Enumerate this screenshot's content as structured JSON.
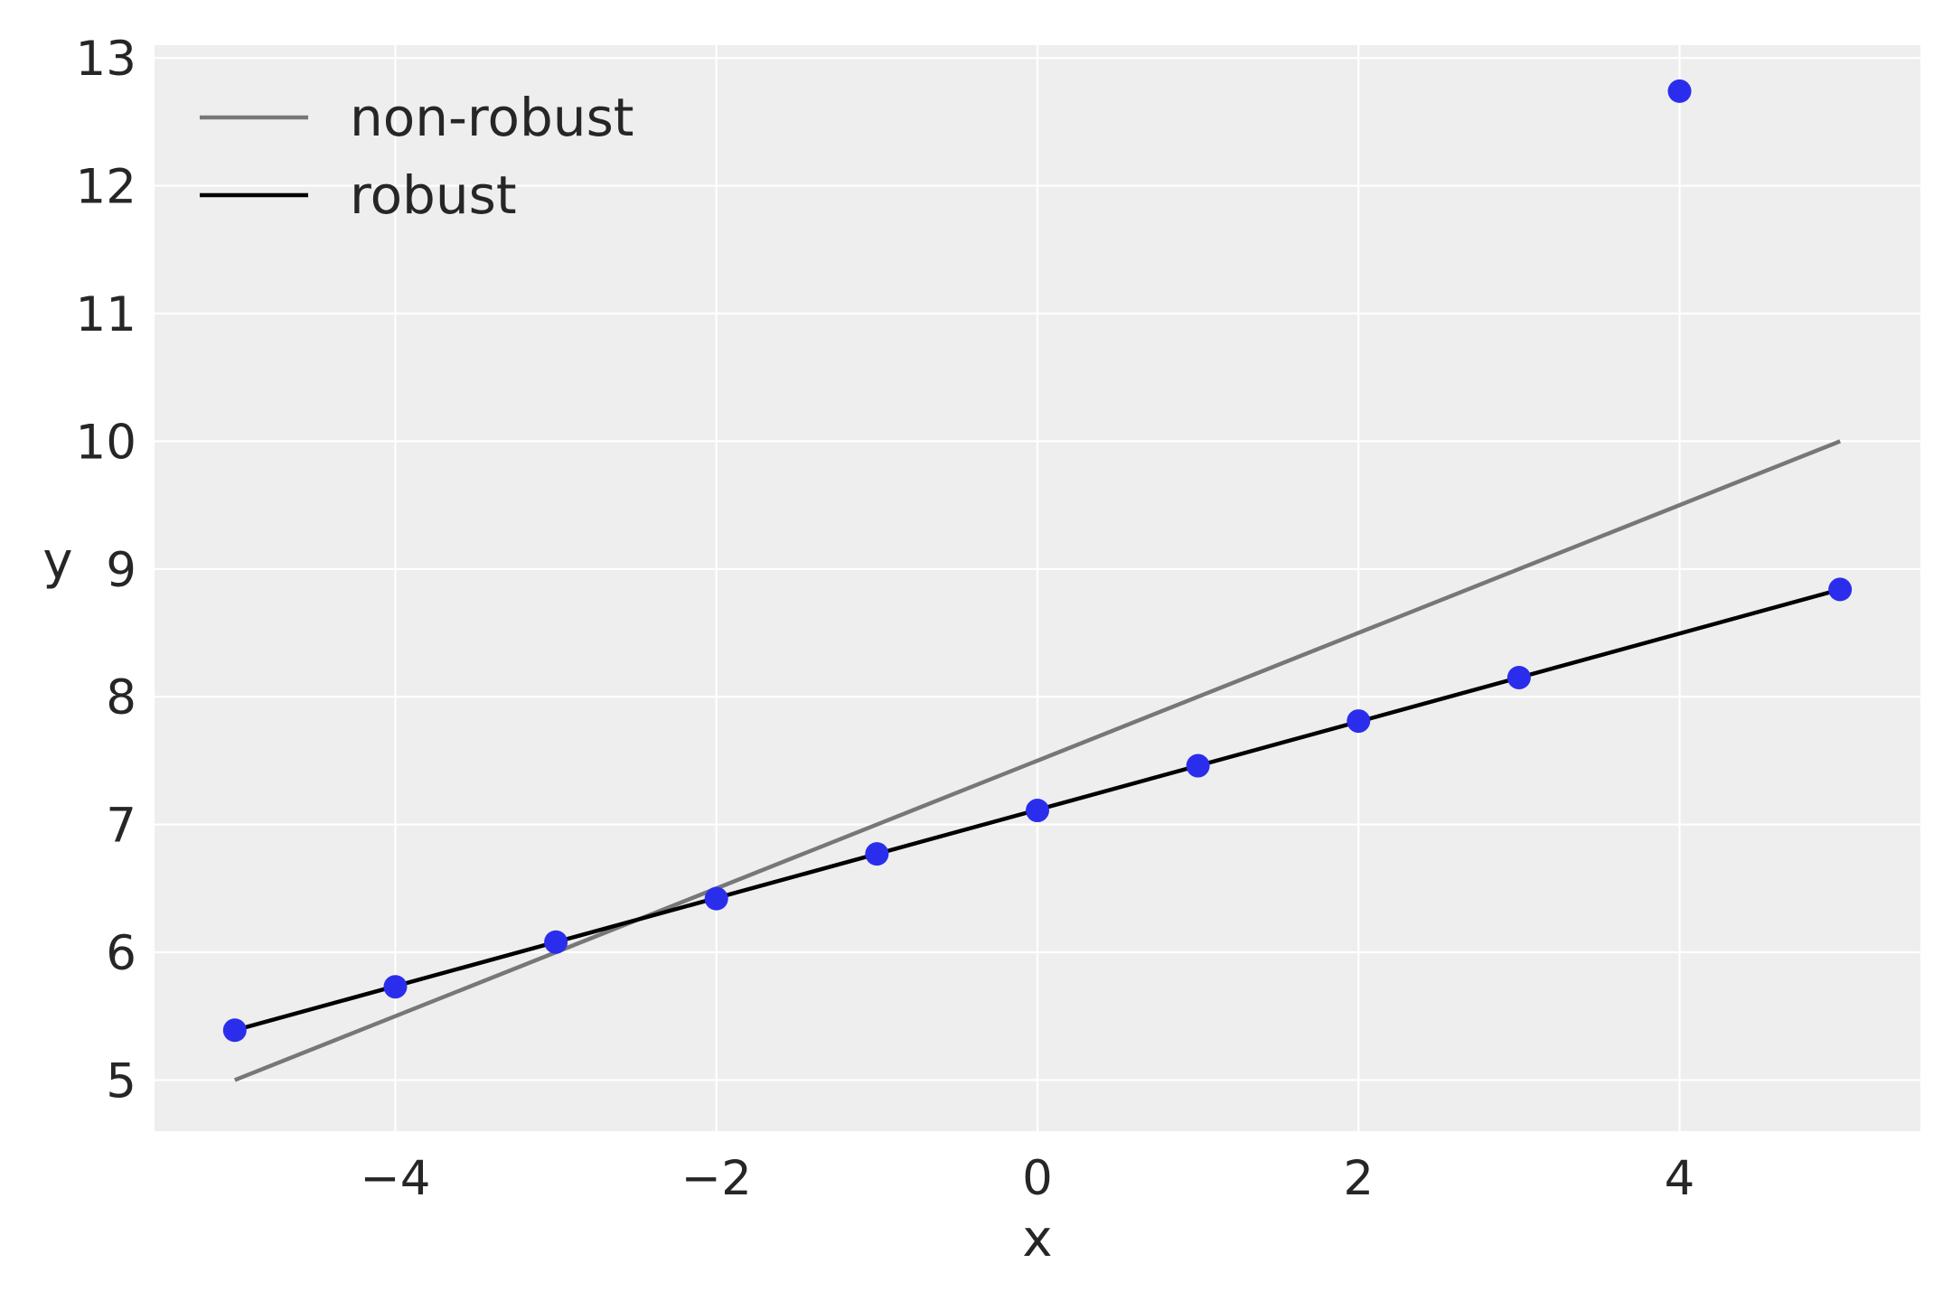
{
  "chart_data": {
    "type": "scatter",
    "title": "",
    "xlabel": "x",
    "ylabel": "y",
    "xlim": [
      -5.5,
      5.5
    ],
    "ylim": [
      4.6,
      13.1
    ],
    "grid": true,
    "xticks": [
      -4,
      -2,
      0,
      2,
      4
    ],
    "xtick_labels": [
      "−4",
      "−2",
      "0",
      "2",
      "4"
    ],
    "yticks": [
      5,
      6,
      7,
      8,
      9,
      10,
      11,
      12,
      13
    ],
    "ytick_labels": [
      "5",
      "6",
      "7",
      "8",
      "9",
      "10",
      "11",
      "12",
      "13"
    ],
    "legend_position": "upper-left",
    "background_color": "#eeeeee",
    "points": {
      "color": "#2a2eec",
      "x": [
        -5,
        -4,
        -3,
        -2,
        -1,
        0,
        1,
        2,
        3,
        4,
        5
      ],
      "y": [
        5.39,
        5.73,
        6.08,
        6.42,
        6.77,
        7.11,
        7.46,
        7.81,
        8.15,
        12.74,
        8.84
      ]
    },
    "series": [
      {
        "name": "non-robust",
        "color": "#777777",
        "x": [
          -5,
          5
        ],
        "y": [
          5.0,
          10.0
        ]
      },
      {
        "name": "robust",
        "color": "#000000",
        "x": [
          -5,
          5
        ],
        "y": [
          5.39,
          8.84
        ]
      }
    ]
  }
}
